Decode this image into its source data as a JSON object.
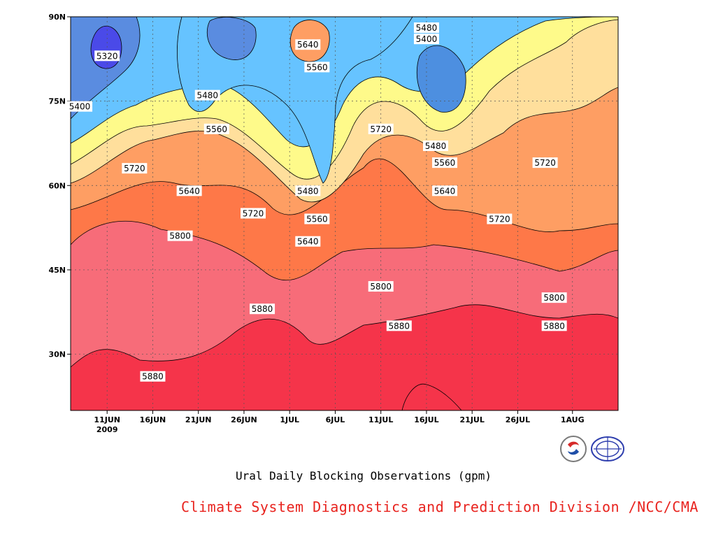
{
  "chart_data": {
    "type": "heatmap",
    "title": "Ural Daily Blocking Observations (gpm)",
    "credit": "Climate System Diagnostics and Prediction Division /NCC/CMA",
    "x_axis": {
      "type": "time",
      "range": [
        "2009-06-07",
        "2009-08-06"
      ],
      "ticks": [
        {
          "date": "2009-06-11",
          "label": "11JUN",
          "sublabel": "2009"
        },
        {
          "date": "2009-06-16",
          "label": "16JUN"
        },
        {
          "date": "2009-06-21",
          "label": "21JUN"
        },
        {
          "date": "2009-06-26",
          "label": "26JUN"
        },
        {
          "date": "2009-07-01",
          "label": "1JUL"
        },
        {
          "date": "2009-07-06",
          "label": "6JUL"
        },
        {
          "date": "2009-07-11",
          "label": "11JUL"
        },
        {
          "date": "2009-07-16",
          "label": "16JUL"
        },
        {
          "date": "2009-07-21",
          "label": "21JUL"
        },
        {
          "date": "2009-07-26",
          "label": "26JUL"
        },
        {
          "date": "2009-08-01",
          "label": "1AUG"
        }
      ]
    },
    "y_axis": {
      "type": "latitude",
      "range": [
        20,
        90
      ],
      "ticks": [
        {
          "value": 30,
          "label": "30N"
        },
        {
          "value": 45,
          "label": "45N"
        },
        {
          "value": 60,
          "label": "60N"
        },
        {
          "value": 75,
          "label": "75N"
        },
        {
          "value": 90,
          "label": "90N"
        }
      ]
    },
    "grid": true,
    "contour_levels": [
      5320,
      5400,
      5480,
      5560,
      5640,
      5720,
      5800,
      5880
    ],
    "level_colors": {
      "below_5320": "#4a4ae8",
      "5320": "#5a8ce0",
      "5400": "#4d8fe0",
      "5480": "#66c3ff",
      "5560": "#fefa8a",
      "5640": "#ffdf9c",
      "5720": "#fe9e63",
      "5800": "#fe7848",
      "5880": "#f76c79",
      "above_5880": "#f5344a"
    },
    "contour_labels": [
      {
        "value": "5320",
        "date": "2009-06-11",
        "lat": 83
      },
      {
        "value": "5400",
        "date": "2009-06-08",
        "lat": 74
      },
      {
        "value": "5480",
        "date": "2009-06-22",
        "lat": 76
      },
      {
        "value": "5560",
        "date": "2009-06-23",
        "lat": 70
      },
      {
        "value": "5720",
        "date": "2009-06-14",
        "lat": 63
      },
      {
        "value": "5640",
        "date": "2009-06-20",
        "lat": 59
      },
      {
        "value": "5720",
        "date": "2009-06-27",
        "lat": 55
      },
      {
        "value": "5800",
        "date": "2009-06-19",
        "lat": 51
      },
      {
        "value": "5880",
        "date": "2009-06-28",
        "lat": 38
      },
      {
        "value": "5880",
        "date": "2009-06-16",
        "lat": 26
      },
      {
        "value": "5640",
        "date": "2009-07-03",
        "lat": 85
      },
      {
        "value": "5560",
        "date": "2009-07-04",
        "lat": 81
      },
      {
        "value": "5480",
        "date": "2009-07-03",
        "lat": 59
      },
      {
        "value": "5560",
        "date": "2009-07-04",
        "lat": 54
      },
      {
        "value": "5640",
        "date": "2009-07-03",
        "lat": 50
      },
      {
        "value": "5720",
        "date": "2009-07-11",
        "lat": 70
      },
      {
        "value": "5800",
        "date": "2009-07-11",
        "lat": 42
      },
      {
        "value": "5880",
        "date": "2009-07-13",
        "lat": 35
      },
      {
        "value": "5480",
        "date": "2009-07-16",
        "lat": 88
      },
      {
        "value": "5400",
        "date": "2009-07-16",
        "lat": 86
      },
      {
        "value": "5480",
        "date": "2009-07-17",
        "lat": 67
      },
      {
        "value": "5560",
        "date": "2009-07-18",
        "lat": 64
      },
      {
        "value": "5640",
        "date": "2009-07-18",
        "lat": 59
      },
      {
        "value": "5720",
        "date": "2009-07-24",
        "lat": 54
      },
      {
        "value": "5720",
        "date": "2009-07-29",
        "lat": 64
      },
      {
        "value": "5800",
        "date": "2009-07-30",
        "lat": 40
      },
      {
        "value": "5880",
        "date": "2009-07-30",
        "lat": 35
      }
    ]
  }
}
